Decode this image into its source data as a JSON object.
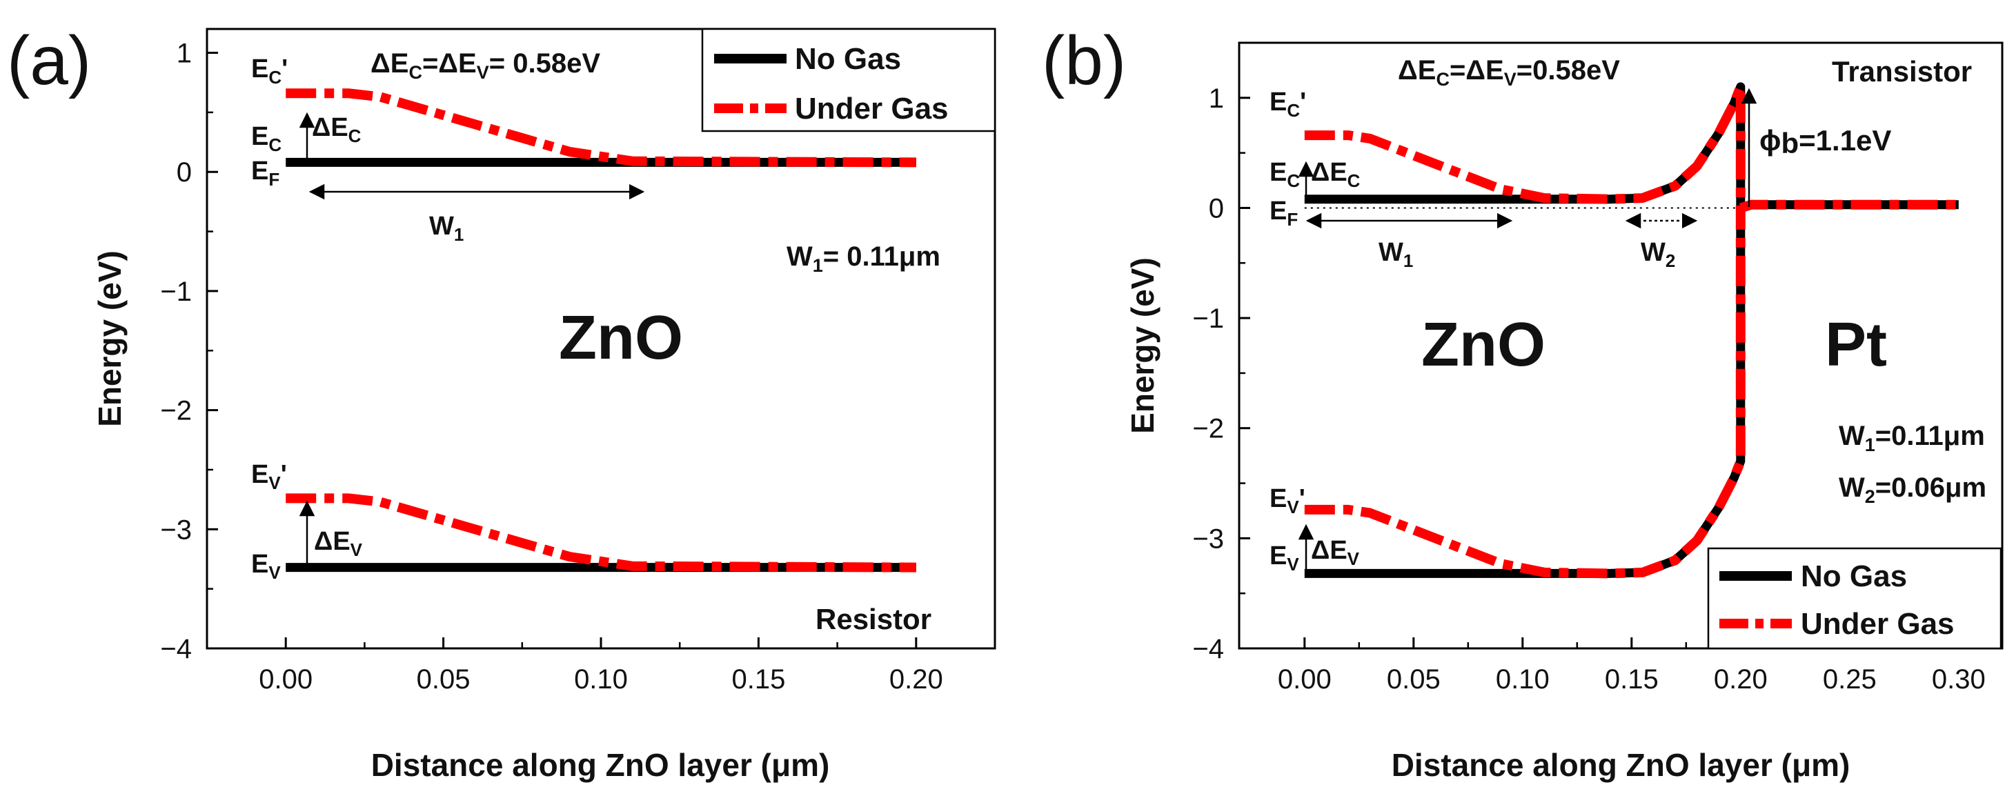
{
  "chart_data": [
    {
      "panel_label": "(a)",
      "type": "line",
      "title": "",
      "xlabel": "Distance along ZnO layer (μm)",
      "ylabel": "Energy (eV)",
      "xlim": [
        -0.025,
        0.225
      ],
      "ylim": [
        -4,
        1.2
      ],
      "xticks": [
        "0.00",
        "0.05",
        "0.10",
        "0.15",
        "0.20"
      ],
      "xtick_values": [
        0.0,
        0.05,
        0.1,
        0.15,
        0.2
      ],
      "yticks": [
        "1",
        "0",
        "−1",
        "−2",
        "−3",
        "−4"
      ],
      "ytick_values": [
        1,
        0,
        -1,
        -2,
        -3,
        -4
      ],
      "legend": [
        "No Gas",
        "Under Gas"
      ],
      "legend_position": "top-right",
      "series": [
        {
          "name": "No Gas",
          "color": "#000000",
          "style": "solid",
          "segments": [
            {
              "band": "conduction",
              "x": [
                0.0,
                0.2
              ],
              "y": [
                0.08,
                0.08
              ]
            },
            {
              "band": "valence",
              "x": [
                0.0,
                0.2
              ],
              "y": [
                -3.32,
                -3.32
              ]
            }
          ]
        },
        {
          "name": "Under Gas",
          "color": "#ff0000",
          "style": "dashdot",
          "segments": [
            {
              "band": "conduction",
              "x": [
                0.0,
                0.02,
                0.03,
                0.06,
                0.09,
                0.11,
                0.2
              ],
              "y": [
                0.66,
                0.66,
                0.63,
                0.4,
                0.17,
                0.09,
                0.08
              ]
            },
            {
              "band": "valence",
              "x": [
                0.0,
                0.02,
                0.03,
                0.06,
                0.09,
                0.11,
                0.2
              ],
              "y": [
                -2.74,
                -2.74,
                -2.77,
                -3.0,
                -3.23,
                -3.31,
                -3.32
              ]
            }
          ]
        }
      ],
      "annotations": {
        "ec_prime": "E",
        "ec_prime_sub": "C",
        "ec_prime_tail": "'",
        "ec": "E",
        "ec_sub": "C",
        "ef": "E",
        "ef_sub": "F",
        "ev_prime": "E",
        "ev_prime_sub": "V",
        "ev_prime_tail": "'",
        "ev": "E",
        "ev_sub": "V",
        "delta_ec": "ΔE",
        "delta_ec_sub": "C",
        "delta_ev": "ΔE",
        "delta_ev_sub": "V",
        "w1": "W",
        "w1_sub": "1",
        "eq_dec": "ΔE",
        "eq_dec_sub": "C",
        "eq_dev": "=ΔE",
        "eq_dev_sub": "V",
        "eq_val": "= 0.58eV",
        "w1_value_pre": "W",
        "w1_value_sub": "1",
        "w1_value": "= 0.11μm",
        "material": "ZnO",
        "device": "Resistor"
      }
    },
    {
      "panel_label": "(b)",
      "type": "line",
      "title": "",
      "xlabel": "Distance along ZnO layer (μm)",
      "ylabel": "Energy (eV)",
      "xlim": [
        -0.03,
        0.32
      ],
      "ylim": [
        -4,
        1.5
      ],
      "xticks": [
        "0.00",
        "0.05",
        "0.10",
        "0.15",
        "0.20",
        "0.25",
        "0.30"
      ],
      "xtick_values": [
        0.0,
        0.05,
        0.1,
        0.15,
        0.2,
        0.25,
        0.3
      ],
      "yticks": [
        "1",
        "0",
        "−1",
        "−2",
        "−3",
        "−4"
      ],
      "ytick_values": [
        1,
        0,
        -1,
        -2,
        -3,
        -4
      ],
      "legend": [
        "No Gas",
        "Under Gas"
      ],
      "legend_position": "bottom-right",
      "series": [
        {
          "name": "No Gas",
          "color": "#000000",
          "style": "solid",
          "segments": [
            {
              "band": "conduction",
              "x": [
                0.0,
                0.14,
                0.155,
                0.17,
                0.18,
                0.19,
                0.197,
                0.2,
                0.2,
                0.205,
                0.3
              ],
              "y": [
                0.08,
                0.08,
                0.09,
                0.2,
                0.38,
                0.68,
                0.95,
                1.1,
                0.0,
                0.03,
                0.03
              ]
            },
            {
              "band": "valence",
              "x": [
                0.0,
                0.14,
                0.155,
                0.17,
                0.18,
                0.19,
                0.197,
                0.2,
                0.2
              ],
              "y": [
                -3.32,
                -3.32,
                -3.31,
                -3.2,
                -3.02,
                -2.72,
                -2.45,
                -2.3,
                0.0
              ]
            }
          ]
        },
        {
          "name": "Under Gas",
          "color": "#ff0000",
          "style": "dashdot",
          "segments": [
            {
              "band": "conduction",
              "x": [
                0.0,
                0.02,
                0.03,
                0.06,
                0.09,
                0.11,
                0.14,
                0.155,
                0.17,
                0.18,
                0.19,
                0.197,
                0.2,
                0.2,
                0.205,
                0.3
              ],
              "y": [
                0.66,
                0.66,
                0.63,
                0.4,
                0.17,
                0.09,
                0.08,
                0.09,
                0.2,
                0.38,
                0.68,
                0.95,
                1.1,
                0.0,
                0.03,
                0.03
              ]
            },
            {
              "band": "valence",
              "x": [
                0.0,
                0.02,
                0.03,
                0.06,
                0.09,
                0.11,
                0.14,
                0.155,
                0.17,
                0.18,
                0.19,
                0.197,
                0.2,
                0.2
              ],
              "y": [
                -2.74,
                -2.74,
                -2.77,
                -3.0,
                -3.23,
                -3.31,
                -3.32,
                -3.31,
                -3.2,
                -3.02,
                -2.72,
                -2.45,
                -2.3,
                0.0
              ]
            }
          ]
        }
      ],
      "annotations": {
        "ec_prime": "E",
        "ec_prime_sub": "C",
        "ec_prime_tail": "'",
        "ec": "E",
        "ec_sub": "C",
        "ef": "E",
        "ef_sub": "F",
        "ev_prime": "E",
        "ev_prime_sub": "V",
        "ev_prime_tail": "'",
        "ev": "E",
        "ev_sub": "V",
        "delta_ec": "ΔE",
        "delta_ec_sub": "C",
        "delta_ev": "ΔE",
        "delta_ev_sub": "V",
        "w1": "W",
        "w1_sub": "1",
        "w2": "W",
        "w2_sub": "2",
        "eq_dec": "ΔE",
        "eq_dec_sub": "C",
        "eq_dev": "=ΔE",
        "eq_dev_sub": "V",
        "eq_val": "=0.58eV",
        "phi_pre": "ϕ",
        "phi_sub": "b",
        "phi_val": "=1.1eV",
        "w1_value_pre": "W",
        "w1_value_sub": "1",
        "w1_value": "=0.11μm",
        "w2_value_pre": "W",
        "w2_value_sub": "2",
        "w2_value": "=0.06μm",
        "material": "ZnO",
        "metal": "Pt",
        "device": "Transistor"
      }
    }
  ]
}
